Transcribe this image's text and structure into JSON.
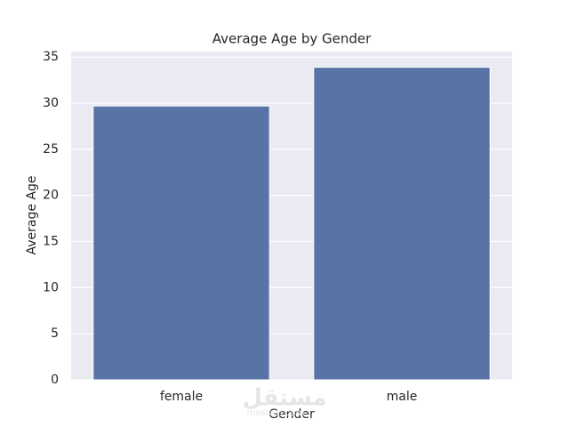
{
  "chart_data": {
    "type": "bar",
    "title": "Average Age by Gender",
    "x_label": "Gender",
    "y_label": "Average Age",
    "categories": [
      "female",
      "male"
    ],
    "values": [
      29.7,
      33.9
    ],
    "color": "#5874a6",
    "ylim": [
      0,
      35.6
    ],
    "yticks": [
      0,
      5,
      10,
      15,
      20,
      25,
      30,
      35
    ],
    "grid": true,
    "watermark": "مستقل",
    "watermark_sub": "mostaql.com"
  }
}
